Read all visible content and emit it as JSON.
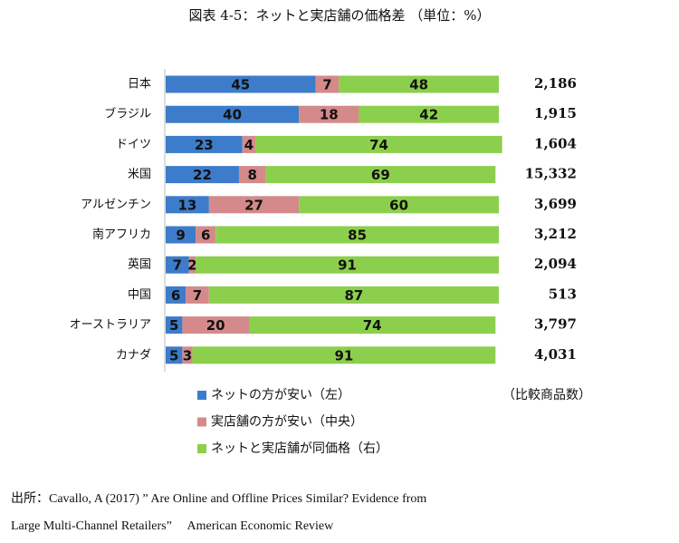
{
  "chart_data": {
    "type": "stacked_barh",
    "title": "図表 4-5：ネットと実店舗の価格差 （単位：%）",
    "categories": [
      "日本",
      "ブラジル",
      "ドイツ",
      "米国",
      "アルゼンチン",
      "南アフリカ",
      "英国",
      "中国",
      "オーストラリア",
      "カナダ"
    ],
    "series": [
      {
        "name": "ネットの方が安い（左）",
        "color": "#3d7cca",
        "values": [
          45,
          40,
          23,
          22,
          13,
          9,
          7,
          6,
          5,
          5
        ]
      },
      {
        "name": "実店舗の方が安い（中央）",
        "color": "#d48a8a",
        "values": [
          7,
          18,
          4,
          8,
          27,
          6,
          2,
          7,
          20,
          3
        ]
      },
      {
        "name": "ネットと実店舗が同価格（右）",
        "color": "#8ccf4c",
        "values": [
          48,
          42,
          74,
          69,
          60,
          85,
          91,
          87,
          74,
          91
        ]
      }
    ],
    "xlim": [
      0,
      100
    ],
    "product_counts": {
      "label": "（比較商品数）",
      "values": [
        2186,
        1915,
        1604,
        15332,
        3699,
        3212,
        2094,
        513,
        3797,
        4031
      ],
      "value_labels": [
        "2,186",
        "1,915",
        "1,604",
        "15,332",
        "3,699",
        "3,212",
        "2,094",
        "513",
        "3,797",
        "4,031"
      ]
    },
    "source": [
      "出所：Cavallo, A (2017) ” Are Online and Offline Prices Similar? Evidence from",
      "Large Multi-Channel Retailers”　 American Economic Review"
    ]
  }
}
